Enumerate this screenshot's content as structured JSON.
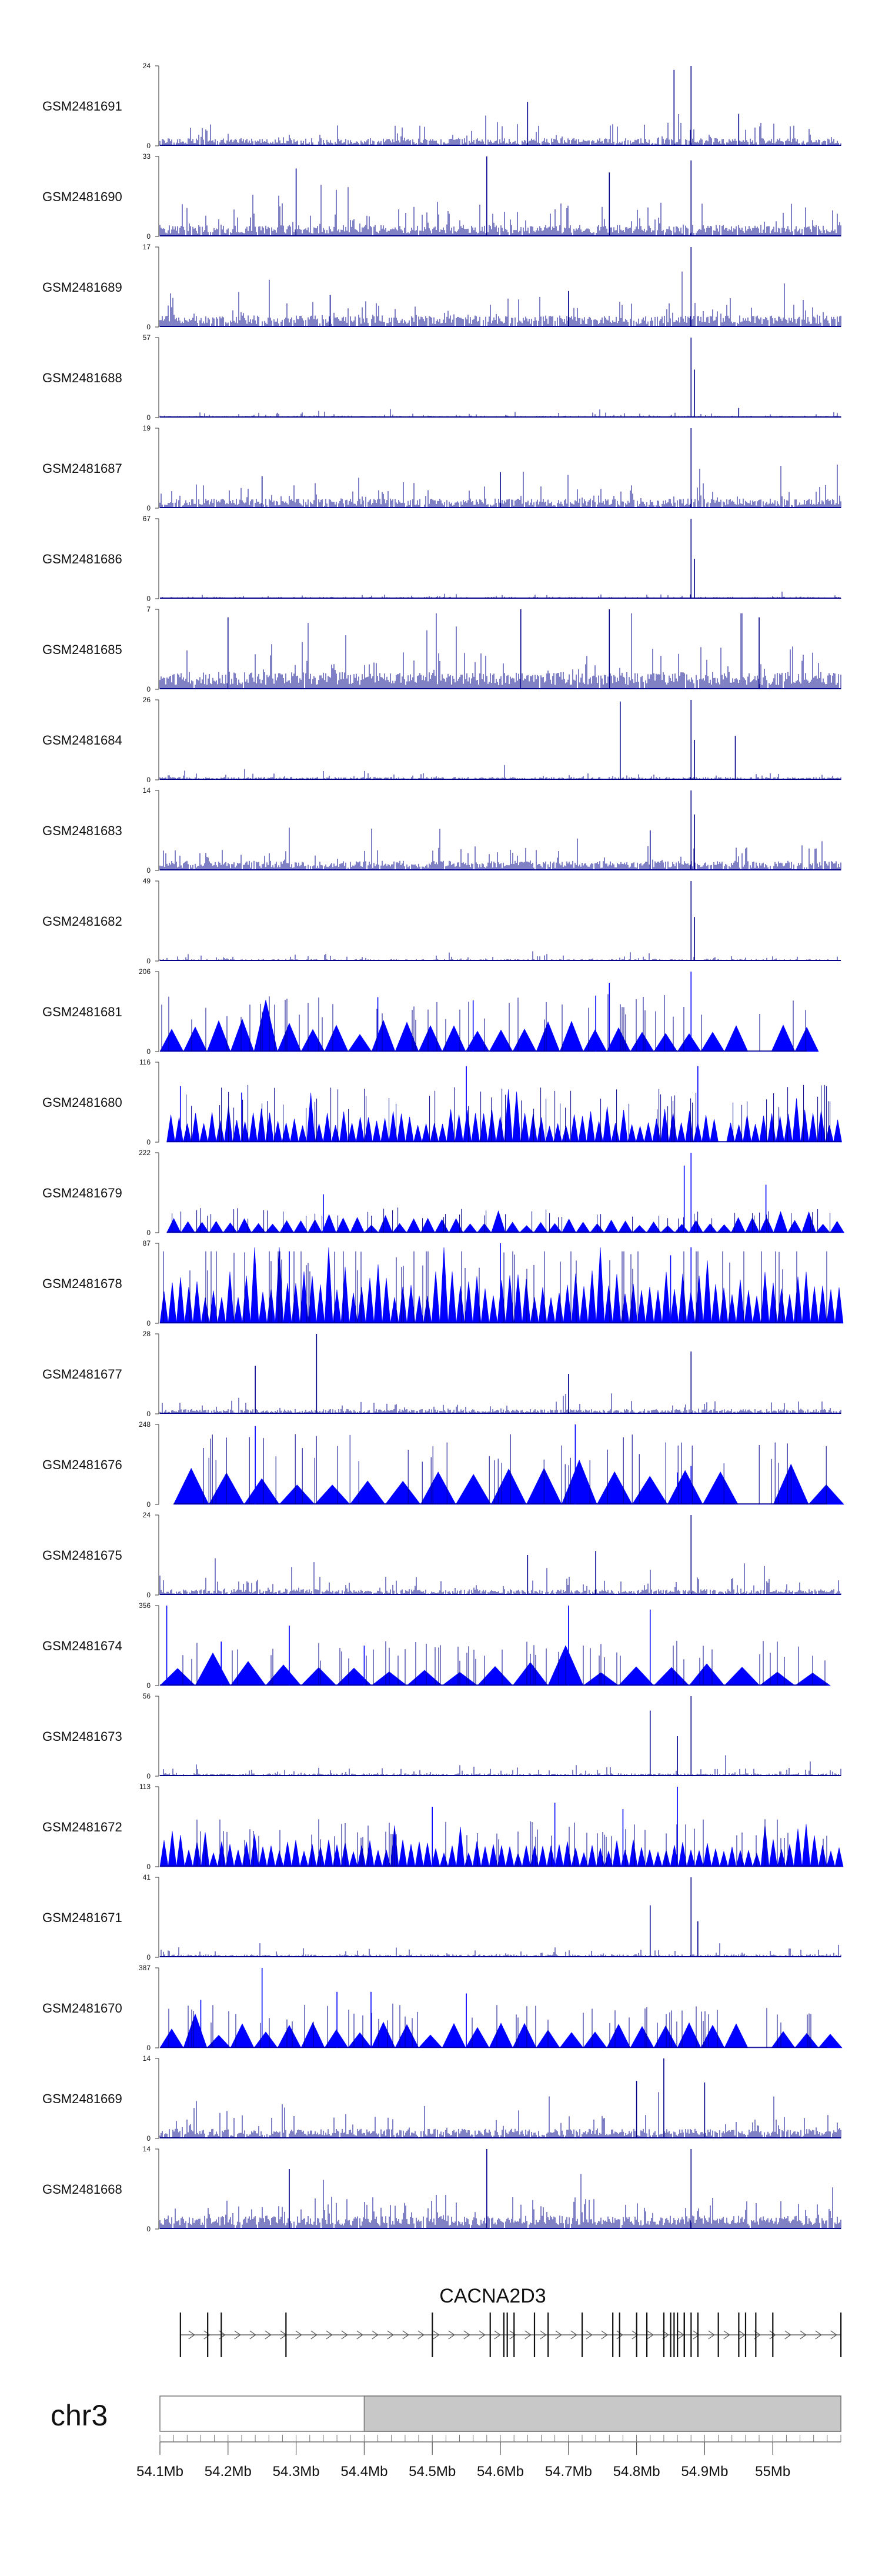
{
  "chart_data": {
    "type": "genome-coverage-tracks",
    "chromosome": "chr3",
    "gene": "CACNA2D3",
    "xlim_mb": [
      54.1,
      55.1
    ],
    "x_ticks_mb": [
      54.1,
      54.2,
      54.3,
      54.4,
      54.5,
      54.6,
      54.7,
      54.8,
      54.9,
      55.0
    ],
    "x_tick_labels": [
      "54.1Mb",
      "54.2Mb",
      "54.3Mb",
      "54.4Mb",
      "54.5Mb",
      "54.6Mb",
      "54.7Mb",
      "54.8Mb",
      "54.9Mb",
      "55Mb"
    ],
    "ideogram_shaded_from_mb": 54.4,
    "colors": {
      "coverage": "#00008b",
      "interpolated": "#0000ff",
      "axis": "#555555",
      "ideogram_shade": "#c8c8c8"
    },
    "tracks": [
      {
        "name": "GSM2481691",
        "ymax": 24,
        "style": "bars",
        "base": 0.08,
        "noise": 0.22,
        "density": 0.9,
        "seed": 11,
        "peaks": [
          [
            54.88,
            1.0
          ],
          [
            54.855,
            0.95
          ],
          [
            54.64,
            0.55
          ],
          [
            54.95,
            0.4
          ]
        ]
      },
      {
        "name": "GSM2481690",
        "ymax": 33,
        "style": "bars",
        "base": 0.12,
        "noise": 0.3,
        "density": 0.95,
        "seed": 12,
        "peaks": [
          [
            54.88,
            0.95
          ],
          [
            54.58,
            1.0
          ],
          [
            54.3,
            0.85
          ],
          [
            54.76,
            0.8
          ]
        ]
      },
      {
        "name": "GSM2481689",
        "ymax": 17,
        "style": "bars",
        "base": 0.12,
        "noise": 0.25,
        "density": 0.9,
        "seed": 13,
        "peaks": [
          [
            54.88,
            1.0
          ],
          [
            54.7,
            0.45
          ],
          [
            54.35,
            0.4
          ]
        ]
      },
      {
        "name": "GSM2481688",
        "ymax": 57,
        "style": "bars",
        "base": 0.02,
        "noise": 0.05,
        "density": 0.7,
        "seed": 14,
        "peaks": [
          [
            54.88,
            1.0
          ],
          [
            54.885,
            0.6
          ],
          [
            54.95,
            0.12
          ]
        ]
      },
      {
        "name": "GSM2481687",
        "ymax": 19,
        "style": "bars",
        "base": 0.1,
        "noise": 0.22,
        "density": 0.9,
        "seed": 15,
        "peaks": [
          [
            54.88,
            1.0
          ],
          [
            54.6,
            0.45
          ],
          [
            54.25,
            0.4
          ]
        ]
      },
      {
        "name": "GSM2481686",
        "ymax": 67,
        "style": "bars",
        "base": 0.02,
        "noise": 0.04,
        "density": 0.6,
        "seed": 16,
        "peaks": [
          [
            54.88,
            1.0
          ],
          [
            54.885,
            0.5
          ]
        ]
      },
      {
        "name": "GSM2481685",
        "ymax": 7,
        "style": "bars",
        "base": 0.18,
        "noise": 0.45,
        "density": 0.98,
        "seed": 17,
        "peaks": [
          [
            54.63,
            1.0
          ],
          [
            54.76,
            1.0
          ],
          [
            54.98,
            0.9
          ],
          [
            54.2,
            0.9
          ]
        ]
      },
      {
        "name": "GSM2481684",
        "ymax": 26,
        "style": "bars",
        "base": 0.03,
        "noise": 0.06,
        "density": 0.8,
        "seed": 18,
        "peaks": [
          [
            54.88,
            1.0
          ],
          [
            54.776,
            0.98
          ],
          [
            54.945,
            0.55
          ],
          [
            54.885,
            0.5
          ]
        ]
      },
      {
        "name": "GSM2481683",
        "ymax": 14,
        "style": "bars",
        "base": 0.1,
        "noise": 0.25,
        "density": 0.9,
        "seed": 19,
        "peaks": [
          [
            54.88,
            1.0
          ],
          [
            54.885,
            0.7
          ],
          [
            54.82,
            0.5
          ]
        ]
      },
      {
        "name": "GSM2481682",
        "ymax": 49,
        "style": "bars",
        "base": 0.02,
        "noise": 0.05,
        "density": 0.75,
        "seed": 20,
        "peaks": [
          [
            54.88,
            1.0
          ],
          [
            54.885,
            0.55
          ]
        ]
      },
      {
        "name": "GSM2481681",
        "ymax": 206,
        "style": "triangles",
        "base": 0.36,
        "noise": 0.08,
        "density": 0.1,
        "seed": 21,
        "spans": [
          54.1,
          55.05
        ],
        "gap": [
          54.93,
          54.98
        ],
        "peaks": [
          [
            54.88,
            1.0
          ],
          [
            54.76,
            0.86
          ],
          [
            54.42,
            0.68
          ],
          [
            54.74,
            0.7
          ],
          [
            54.56,
            0.64
          ]
        ]
      },
      {
        "name": "GSM2481680",
        "ymax": 116,
        "style": "triangles",
        "base": 0.36,
        "noise": 0.05,
        "density": 0.35,
        "seed": 22,
        "spans": [
          54.11,
          55.1
        ],
        "gap": [
          54.91,
          54.93
        ],
        "peaks": [
          [
            54.89,
            0.95
          ],
          [
            54.55,
            0.95
          ],
          [
            54.13,
            0.7
          ],
          [
            54.22,
            0.62
          ]
        ]
      },
      {
        "name": "GSM2481679",
        "ymax": 222,
        "style": "triangles",
        "base": 0.16,
        "noise": 0.05,
        "density": 0.25,
        "seed": 23,
        "spans": [
          54.11,
          55.1
        ],
        "gap": [],
        "peaks": [
          [
            54.88,
            1.0
          ],
          [
            54.87,
            0.84
          ],
          [
            54.99,
            0.6
          ],
          [
            54.34,
            0.48
          ]
        ]
      },
      {
        "name": "GSM2481678",
        "ymax": 87,
        "style": "triangles",
        "base": 0.58,
        "noise": 0.06,
        "density": 0.45,
        "seed": 24,
        "spans": [
          54.1,
          55.1
        ],
        "gap": [],
        "peaks": [
          [
            54.6,
            1.0
          ],
          [
            54.88,
            0.95
          ],
          [
            54.29,
            0.9
          ],
          [
            54.85,
            0.85
          ]
        ]
      },
      {
        "name": "GSM2481677",
        "ymax": 28,
        "style": "bars",
        "base": 0.05,
        "noise": 0.12,
        "density": 0.85,
        "seed": 25,
        "peaks": [
          [
            54.33,
            1.0
          ],
          [
            54.88,
            0.78
          ],
          [
            54.24,
            0.6
          ],
          [
            54.7,
            0.5
          ]
        ]
      },
      {
        "name": "GSM2481676",
        "ymax": 248,
        "style": "triangles",
        "base": 0.44,
        "noise": 0.05,
        "density": 0.05,
        "seed": 26,
        "spans": [
          54.12,
          55.08
        ],
        "gap": [
          54.93,
          54.98
        ],
        "peaks": [
          [
            54.24,
            0.98
          ],
          [
            54.71,
            1.0
          ],
          [
            54.88,
            0.48
          ],
          [
            54.86,
            0.4
          ]
        ]
      },
      {
        "name": "GSM2481675",
        "ymax": 24,
        "style": "bars",
        "base": 0.06,
        "noise": 0.18,
        "density": 0.9,
        "seed": 27,
        "peaks": [
          [
            54.88,
            1.0
          ],
          [
            54.74,
            0.55
          ],
          [
            54.64,
            0.5
          ]
        ]
      },
      {
        "name": "GSM2481674",
        "ymax": 356,
        "style": "triangles",
        "base": 0.28,
        "noise": 0.05,
        "density": 0.05,
        "seed": 28,
        "spans": [
          54.1,
          55.08
        ],
        "gap": [
          54.93,
          54.98
        ],
        "peaks": [
          [
            54.11,
            1.0
          ],
          [
            54.7,
            1.0
          ],
          [
            54.82,
            0.95
          ],
          [
            54.29,
            0.75
          ],
          [
            54.19,
            0.55
          ],
          [
            54.4,
            0.5
          ]
        ]
      },
      {
        "name": "GSM2481673",
        "ymax": 56,
        "style": "bars",
        "base": 0.03,
        "noise": 0.08,
        "density": 0.8,
        "seed": 29,
        "peaks": [
          [
            54.88,
            1.0
          ],
          [
            54.82,
            0.82
          ],
          [
            54.86,
            0.5
          ]
        ]
      },
      {
        "name": "GSM2481672",
        "ymax": 113,
        "style": "triangles",
        "base": 0.3,
        "noise": 0.05,
        "density": 0.35,
        "seed": 30,
        "spans": [
          54.1,
          55.1
        ],
        "gap": [],
        "peaks": [
          [
            54.86,
            1.0
          ],
          [
            54.68,
            0.8
          ],
          [
            54.5,
            0.75
          ],
          [
            54.78,
            0.72
          ]
        ]
      },
      {
        "name": "GSM2481671",
        "ymax": 41,
        "style": "bars",
        "base": 0.03,
        "noise": 0.08,
        "density": 0.8,
        "seed": 31,
        "peaks": [
          [
            54.88,
            1.0
          ],
          [
            54.82,
            0.65
          ],
          [
            54.89,
            0.45
          ]
        ]
      },
      {
        "name": "GSM2481670",
        "ymax": 387,
        "style": "triangles",
        "base": 0.28,
        "noise": 0.05,
        "density": 0.1,
        "seed": 32,
        "spans": [
          54.1,
          55.08
        ],
        "gap": [
          54.93,
          54.98
        ],
        "peaks": [
          [
            54.25,
            1.0
          ],
          [
            54.41,
            0.7
          ],
          [
            54.36,
            0.7
          ],
          [
            54.55,
            0.68
          ],
          [
            54.16,
            0.6
          ]
        ]
      },
      {
        "name": "GSM2481669",
        "ymax": 14,
        "style": "bars",
        "base": 0.1,
        "noise": 0.25,
        "density": 0.9,
        "seed": 33,
        "peaks": [
          [
            54.84,
            1.0
          ],
          [
            54.8,
            0.72
          ],
          [
            54.9,
            0.7
          ]
        ]
      },
      {
        "name": "GSM2481668",
        "ymax": 14,
        "style": "bars",
        "base": 0.14,
        "noise": 0.3,
        "density": 0.95,
        "seed": 34,
        "peaks": [
          [
            54.88,
            1.0
          ],
          [
            54.58,
            1.0
          ],
          [
            54.29,
            0.75
          ]
        ]
      }
    ],
    "gene_model": {
      "start_mb": 54.13,
      "end_mb": 55.1,
      "strand": "+",
      "exons_mb": [
        54.13,
        54.17,
        54.19,
        54.285,
        54.5,
        54.585,
        54.605,
        54.61,
        54.62,
        54.65,
        54.67,
        54.72,
        54.765,
        54.775,
        54.8,
        54.815,
        54.84,
        54.85,
        54.855,
        54.86,
        54.87,
        54.87,
        54.88,
        54.89,
        54.92,
        54.95,
        54.96,
        54.975,
        55.0,
        55.1
      ]
    }
  }
}
